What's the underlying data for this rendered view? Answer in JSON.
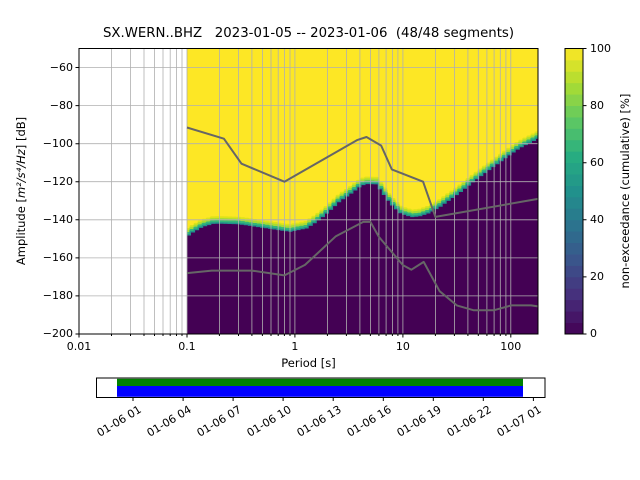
{
  "title": "SX.WERN..BHZ   2023-01-05 -- 2023-01-06  (48/48 segments)",
  "station": "SX.WERN..BHZ",
  "date_range": "2023-01-05 -- 2023-01-06",
  "segments": "48/48 segments",
  "axes": {
    "xlabel": "Period [s]",
    "ylabel_prefix": "Amplitude [",
    "ylabel_math": "m²/s⁴/Hz",
    "ylabel_suffix": "] [dB]",
    "x_tick_labels": [
      "0.01",
      "0.1",
      "1",
      "10",
      "100"
    ],
    "y_tick_labels": [
      "−60",
      "−80",
      "−100",
      "−120",
      "−140",
      "−160",
      "−180",
      "−200"
    ]
  },
  "colorbar": {
    "label": "non-exceedance (cumulative) [%]",
    "tick_labels": [
      "0",
      "20",
      "40",
      "60",
      "80",
      "100"
    ]
  },
  "chart_data": {
    "type": "heatmap",
    "title": "SX.WERN..BHZ   2023-01-05 -- 2023-01-06  (48/48 segments)",
    "xlabel": "Period [s]",
    "ylabel": "Amplitude [m²/s⁴/Hz] [dB]",
    "x_axis": {
      "scale": "log",
      "range_s": [
        0.01,
        178.6
      ],
      "ticks": [
        0.01,
        0.1,
        1,
        10,
        100
      ]
    },
    "y_axis": {
      "range_db": [
        -200,
        -50
      ],
      "ticks": [
        -60,
        -80,
        -100,
        -120,
        -140,
        -160,
        -180,
        -200
      ]
    },
    "colorbar": {
      "label": "non-exceedance (cumulative) [%]",
      "range_pct": [
        0,
        100
      ],
      "ticks": [
        0,
        20,
        40,
        60,
        80,
        100
      ],
      "colormap": "viridis",
      "discrete_steps": 25
    },
    "grid": true,
    "data_period_range_s": [
      0.1,
      178.6
    ],
    "median_psd_db": [
      [
        0.1,
        -149.0
      ],
      [
        0.115,
        -146.5
      ],
      [
        0.14,
        -143.8
      ],
      [
        0.18,
        -142.0
      ],
      [
        0.3,
        -142.3
      ],
      [
        0.5,
        -144.2
      ],
      [
        0.9,
        -146.3
      ],
      [
        1.3,
        -144.5
      ],
      [
        1.7,
        -140.0
      ],
      [
        2.1,
        -135.5
      ],
      [
        2.6,
        -130.5
      ],
      [
        3.2,
        -127.0
      ],
      [
        4.0,
        -122.8
      ],
      [
        4.5,
        -121.2
      ],
      [
        5.6,
        -121.4
      ],
      [
        6.2,
        -124.5
      ],
      [
        7.6,
        -131.5
      ],
      [
        9.5,
        -136.8
      ],
      [
        12.0,
        -138.6
      ],
      [
        14.5,
        -138.2
      ],
      [
        17.8,
        -136.4
      ],
      [
        21.9,
        -133.5
      ],
      [
        33.5,
        -126.0
      ],
      [
        51.0,
        -117.8
      ],
      [
        78.5,
        -110.0
      ],
      [
        120.0,
        -102.5
      ],
      [
        178.6,
        -97.5
      ]
    ],
    "transition_halfwidth_db": 2,
    "noise_models": {
      "color": "#666666",
      "nhnm": [
        [
          0.1,
          -91.5
        ],
        [
          0.22,
          -97.4
        ],
        [
          0.32,
          -110.5
        ],
        [
          0.8,
          -120.0
        ],
        [
          3.8,
          -98.0
        ],
        [
          4.6,
          -96.5
        ],
        [
          6.3,
          -101.0
        ],
        [
          7.9,
          -113.5
        ],
        [
          15.4,
          -120.0
        ],
        [
          20.0,
          -138.5
        ],
        [
          178.6,
          -129.0
        ]
      ],
      "nlnm": [
        [
          0.1,
          -168.0
        ],
        [
          0.17,
          -166.7
        ],
        [
          0.4,
          -166.7
        ],
        [
          0.8,
          -169.2
        ],
        [
          1.24,
          -163.7
        ],
        [
          2.4,
          -148.6
        ],
        [
          4.3,
          -141.1
        ],
        [
          5.0,
          -141.1
        ],
        [
          6.0,
          -149.0
        ],
        [
          10.0,
          -163.8
        ],
        [
          12.0,
          -166.2
        ],
        [
          15.6,
          -162.1
        ],
        [
          21.9,
          -177.5
        ],
        [
          31.6,
          -185.0
        ],
        [
          45.0,
          -187.5
        ],
        [
          70.0,
          -187.5
        ],
        [
          101.0,
          -185.0
        ],
        [
          154.0,
          -185.0
        ],
        [
          178.6,
          -185.5
        ]
      ]
    },
    "viridis_stops": [
      "#440154",
      "#472d7b",
      "#3b528b",
      "#2c728e",
      "#21918c",
      "#27ad81",
      "#5ec863",
      "#aadc32",
      "#fde725"
    ],
    "field_colors": {
      "low": "#440154",
      "high": "#fde725"
    },
    "grid_color": "#b0b0b0",
    "timeline": {
      "tick_labels": [
        "01-06 01",
        "01-06 04",
        "01-06 07",
        "01-06 10",
        "01-06 13",
        "01-06 16",
        "01-06 19",
        "01-06 22",
        "01-07 01"
      ],
      "bar_top_color": "#008000",
      "bar_bottom_color": "#0000ff",
      "coverage_start_frac": 0.046,
      "coverage_end_frac": 0.951
    }
  }
}
